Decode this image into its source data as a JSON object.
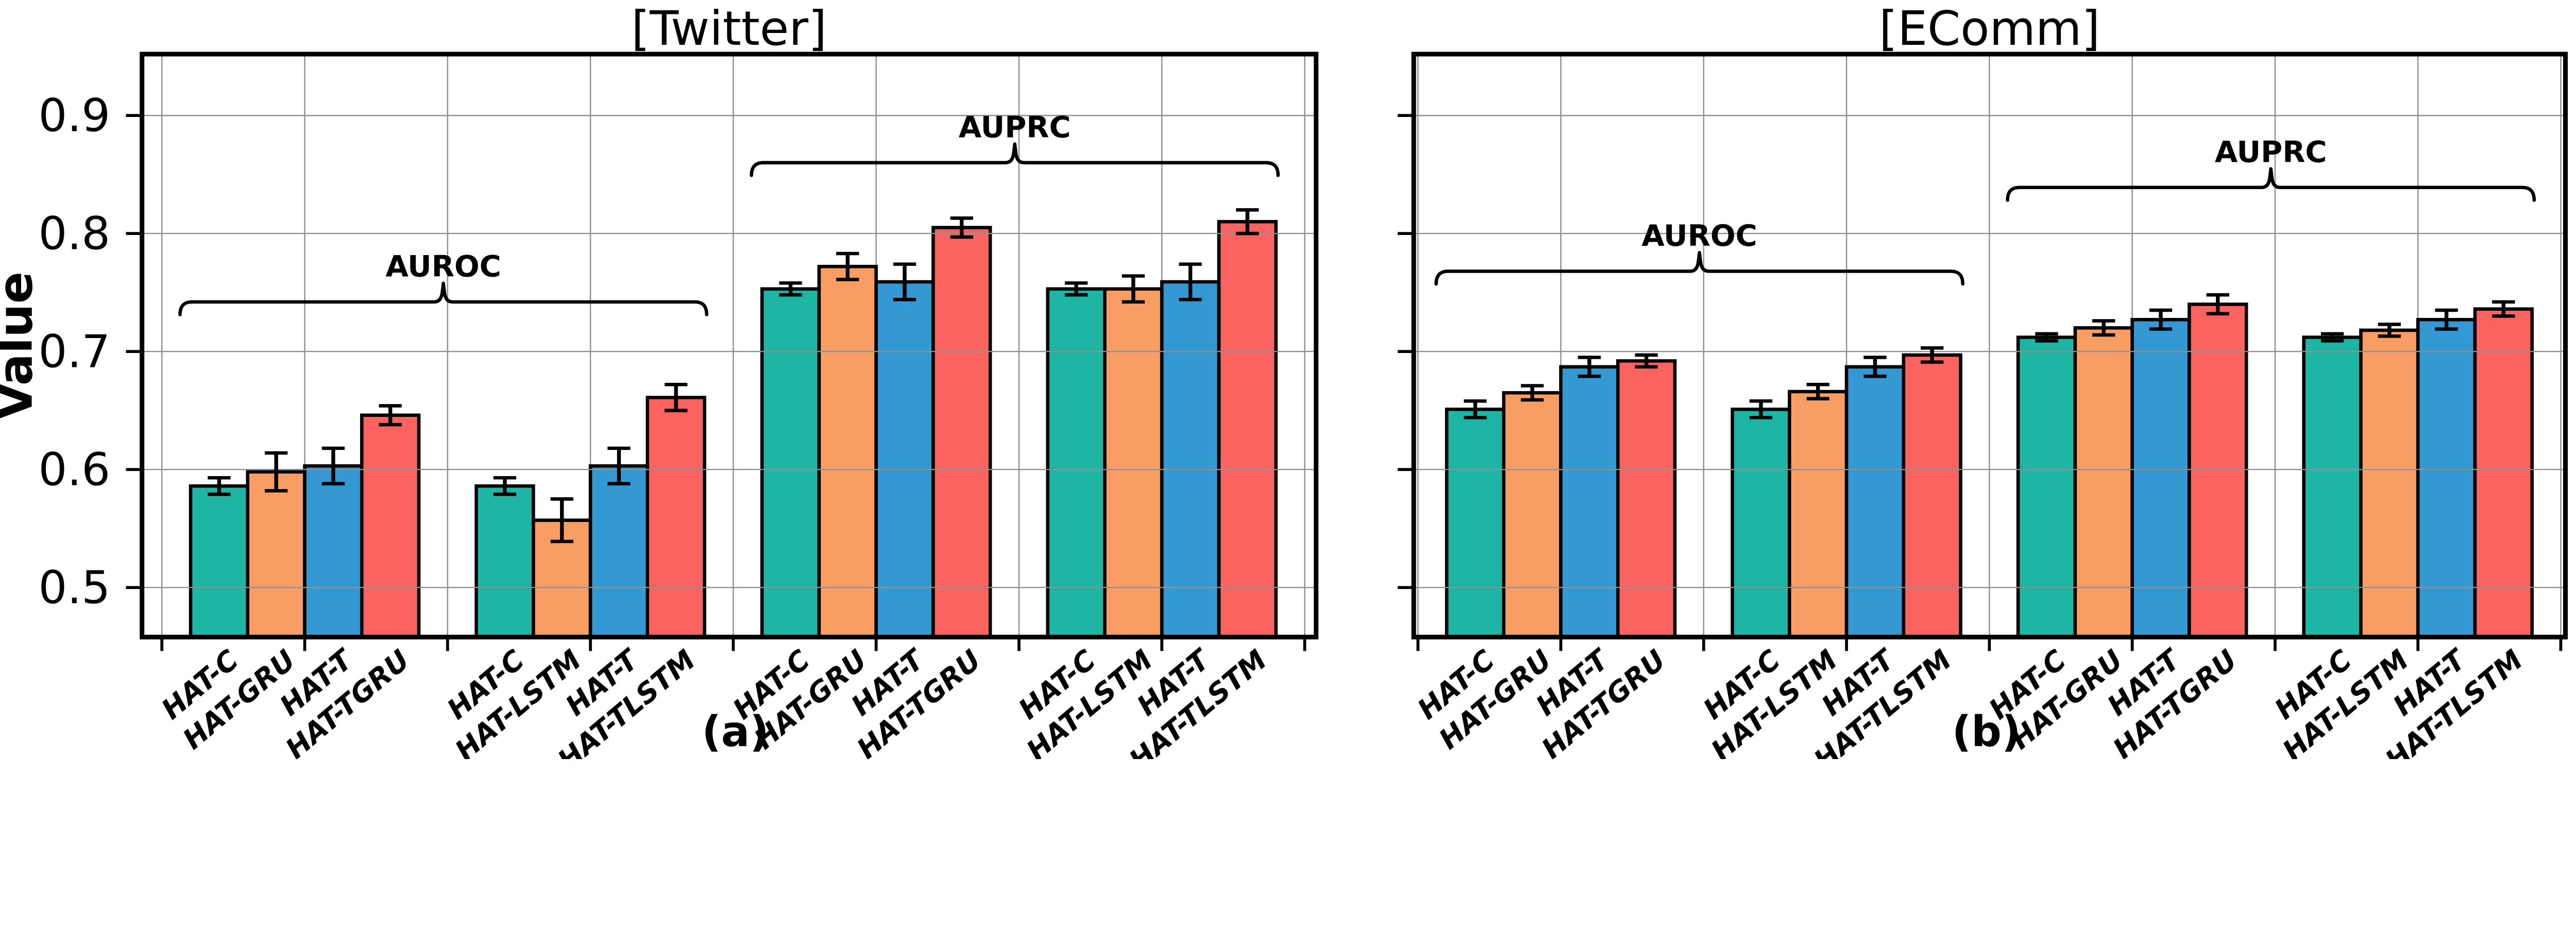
{
  "palette": {
    "bar_colors": [
      "#1FB5A5",
      "#F89E64",
      "#3498D3",
      "#FA6360"
    ],
    "bar_edge": "#000000",
    "grid_color": "#909090",
    "axis_color": "#000000",
    "background": "#FFFFFF",
    "text_color": "#000000"
  },
  "chart_data": [
    {
      "type": "bar",
      "title": "[Twitter]",
      "caption": "(a)",
      "ylabel": "Value",
      "xlabel": "",
      "ylim": [
        0.458,
        0.952
      ],
      "yticks": [
        0.9,
        0.8,
        0.7,
        0.6,
        0.5
      ],
      "ytick_labels": [
        "0.9",
        "0.8",
        "0.7",
        "0.6",
        "0.5"
      ],
      "grid": true,
      "legend": "none",
      "error_bars": true,
      "sections": [
        {
          "label": "AUROC",
          "group_indexes": [
            0,
            1
          ],
          "brace_value": 0.742
        },
        {
          "label": "AUPRC",
          "group_indexes": [
            2,
            3
          ],
          "brace_value": 0.86
        }
      ],
      "groups": [
        {
          "categories": [
            "HAT-C",
            "HAT-GRU",
            "HAT-T",
            "HAT-TGRU"
          ],
          "values": [
            0.586,
            0.598,
            0.603,
            0.646
          ],
          "errors": [
            0.007,
            0.016,
            0.015,
            0.008
          ]
        },
        {
          "categories": [
            "HAT-C",
            "HAT-LSTM",
            "HAT-T",
            "HAT-TLSTM"
          ],
          "values": [
            0.586,
            0.557,
            0.603,
            0.661
          ],
          "errors": [
            0.007,
            0.018,
            0.015,
            0.011
          ]
        },
        {
          "categories": [
            "HAT-C",
            "HAT-GRU",
            "HAT-T",
            "HAT-TGRU"
          ],
          "values": [
            0.753,
            0.772,
            0.759,
            0.805
          ],
          "errors": [
            0.005,
            0.011,
            0.015,
            0.008
          ]
        },
        {
          "categories": [
            "HAT-C",
            "HAT-LSTM",
            "HAT-T",
            "HAT-TLSTM"
          ],
          "values": [
            0.753,
            0.753,
            0.759,
            0.81
          ],
          "errors": [
            0.005,
            0.011,
            0.015,
            0.01
          ]
        }
      ]
    },
    {
      "type": "bar",
      "title": "[EComm]",
      "caption": "(b)",
      "ylabel": "",
      "xlabel": "",
      "ylim": [
        0.458,
        0.952
      ],
      "yticks": [
        0.9,
        0.8,
        0.7,
        0.6,
        0.5
      ],
      "ytick_labels": [
        "0.9",
        "0.8",
        "0.7",
        "0.6",
        "0.5"
      ],
      "grid": true,
      "legend": "none",
      "error_bars": true,
      "sections": [
        {
          "label": "AUROC",
          "group_indexes": [
            0,
            1
          ],
          "brace_value": 0.768
        },
        {
          "label": "AUPRC",
          "group_indexes": [
            2,
            3
          ],
          "brace_value": 0.839
        }
      ],
      "groups": [
        {
          "categories": [
            "HAT-C",
            "HAT-GRU",
            "HAT-T",
            "HAT-TGRU"
          ],
          "values": [
            0.651,
            0.665,
            0.687,
            0.692
          ],
          "errors": [
            0.007,
            0.006,
            0.008,
            0.005
          ]
        },
        {
          "categories": [
            "HAT-C",
            "HAT-LSTM",
            "HAT-T",
            "HAT-TLSTM"
          ],
          "values": [
            0.651,
            0.666,
            0.687,
            0.697
          ],
          "errors": [
            0.007,
            0.006,
            0.008,
            0.006
          ]
        },
        {
          "categories": [
            "HAT-C",
            "HAT-GRU",
            "HAT-T",
            "HAT-TGRU"
          ],
          "values": [
            0.712,
            0.72,
            0.727,
            0.74
          ],
          "errors": [
            0.003,
            0.006,
            0.008,
            0.008
          ]
        },
        {
          "categories": [
            "HAT-C",
            "HAT-LSTM",
            "HAT-T",
            "HAT-TLSTM"
          ],
          "values": [
            0.712,
            0.718,
            0.727,
            0.736
          ],
          "errors": [
            0.003,
            0.005,
            0.008,
            0.006
          ]
        }
      ]
    }
  ]
}
